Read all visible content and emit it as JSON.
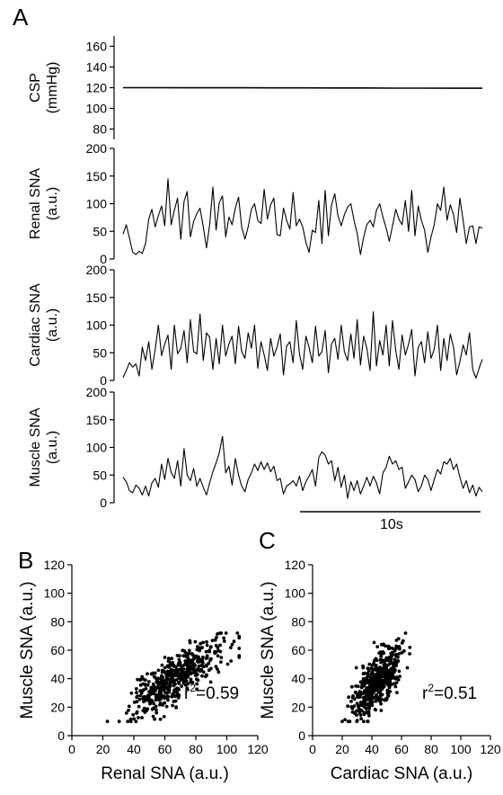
{
  "panels": {
    "a": "A",
    "b": "B",
    "c": "C"
  },
  "scale_bar_label": "10s",
  "chart_data": [
    {
      "type": "line",
      "panel": "A",
      "ylabel_lines": [
        "CSP",
        "(mmHg)"
      ],
      "ylim": [
        70,
        170
      ],
      "yticks": [
        "80",
        "100",
        "120",
        "140",
        "160"
      ],
      "series": [
        {
          "y": [
            120.0,
            120.0,
            119.9,
            119.9,
            119.9,
            119.8,
            119.8,
            119.7,
            119.7,
            119.6,
            119.6,
            119.5,
            119.5
          ]
        }
      ]
    },
    {
      "type": "line",
      "panel": "A",
      "ylabel_lines": [
        "Renal SNA",
        "(a.u.)"
      ],
      "ylim": [
        0,
        200
      ],
      "yticks": [
        "0",
        "50",
        "100",
        "150",
        "200"
      ],
      "series": [
        {
          "y": [
            45,
            62,
            38,
            12,
            8,
            14,
            10,
            28,
            72,
            90,
            58,
            78,
            96,
            60,
            145,
            62,
            88,
            110,
            36,
            104,
            122,
            40,
            68,
            82,
            92,
            58,
            20,
            62,
            130,
            52,
            102,
            114,
            40,
            76,
            62,
            92,
            112,
            58,
            36,
            58,
            90,
            100,
            70,
            64,
            126,
            72,
            98,
            110,
            44,
            42,
            92,
            70,
            54,
            120,
            60,
            72,
            58,
            30,
            12,
            52,
            48,
            106,
            28,
            124,
            42,
            98,
            118,
            78,
            60,
            80,
            94,
            100,
            70,
            46,
            8,
            40,
            62,
            70,
            58,
            88,
            100,
            76,
            56,
            32,
            60,
            90,
            72,
            62,
            106,
            50,
            124,
            42,
            96,
            70,
            52,
            12,
            40,
            62,
            100,
            88,
            130,
            70,
            98,
            80,
            48,
            110,
            70,
            28,
            58,
            60,
            28,
            58,
            56
          ]
        }
      ]
    },
    {
      "type": "line",
      "panel": "A",
      "ylabel_lines": [
        "Cardiac SNA",
        "(a.u.)"
      ],
      "ylim": [
        0,
        200
      ],
      "yticks": [
        "0",
        "50",
        "100",
        "150",
        "200"
      ],
      "series": [
        {
          "y": [
            5,
            18,
            32,
            24,
            30,
            8,
            60,
            36,
            70,
            20,
            55,
            100,
            45,
            66,
            82,
            20,
            100,
            48,
            58,
            90,
            32,
            110,
            52,
            48,
            120,
            36,
            86,
            78,
            20,
            76,
            30,
            100,
            44,
            66,
            80,
            30,
            98,
            52,
            40,
            86,
            58,
            100,
            22,
            70,
            46,
            18,
            76,
            44,
            60,
            84,
            10,
            62,
            70,
            32,
            108,
            48,
            20,
            80,
            60,
            32,
            98,
            44,
            52,
            90,
            14,
            66,
            76,
            38,
            100,
            52,
            36,
            84,
            40,
            110,
            28,
            80,
            58,
            18,
            124,
            26,
            72,
            46,
            100,
            26,
            108,
            54,
            20,
            82,
            46,
            66,
            92,
            8,
            60,
            70,
            32,
            88,
            40,
            56,
            100,
            18,
            76,
            36,
            84,
            60,
            10,
            34,
            64,
            46,
            86,
            20,
            4,
            22,
            38
          ]
        }
      ]
    },
    {
      "type": "line",
      "panel": "A",
      "ylabel_lines": [
        "Muscle SNA",
        "(a.u.)"
      ],
      "ylim": [
        0,
        200
      ],
      "yticks": [
        "0",
        "50",
        "100",
        "150",
        "200"
      ],
      "series": [
        {
          "y": [
            46,
            38,
            22,
            18,
            32,
            26,
            14,
            30,
            12,
            36,
            44,
            28,
            70,
            42,
            80,
            55,
            44,
            76,
            30,
            98,
            50,
            40,
            62,
            30,
            44,
            28,
            14,
            36,
            56,
            72,
            90,
            120,
            54,
            66,
            32,
            80,
            50,
            30,
            20,
            42,
            54,
            70,
            58,
            74,
            60,
            72,
            56,
            66,
            40,
            44,
            16,
            30,
            34,
            40,
            30,
            48,
            22,
            38,
            48,
            60,
            30,
            82,
            92,
            86,
            70,
            76,
            40,
            64,
            28,
            50,
            8,
            38,
            22,
            40,
            16,
            30,
            46,
            30,
            48,
            36,
            16,
            54,
            64,
            84,
            70,
            76,
            60,
            64,
            26,
            38,
            50,
            42,
            20,
            30,
            50,
            42,
            22,
            42,
            60,
            52,
            74,
            70,
            80,
            60,
            70,
            46,
            26,
            40,
            18,
            32,
            12,
            28,
            20
          ]
        }
      ]
    },
    {
      "type": "scatter",
      "panel": "B",
      "xlabel": "Renal SNA (a.u.)",
      "ylabel": "Muscle SNA (a.u.)",
      "xlim": [
        0,
        120
      ],
      "ylim": [
        0,
        120
      ],
      "xticks": [
        "0",
        "20",
        "40",
        "60",
        "80",
        "100",
        "120"
      ],
      "yticks": [
        "0",
        "20",
        "40",
        "60",
        "80",
        "100",
        "120"
      ],
      "r2_prefix": "r",
      "r2_exponent": "2",
      "r2_value": "=0.59",
      "fit": {
        "slope": 0.65,
        "intercept": -3,
        "sd_noise": 8,
        "x_mean": 68,
        "x_sd": 15,
        "x_min": 15,
        "x_max": 108,
        "y_min": 10,
        "y_max": 72
      },
      "n_points": 480
    },
    {
      "type": "scatter",
      "panel": "C",
      "xlabel": "Cardiac SNA (a.u.)",
      "ylabel": "Muscle SNA (a.u.)",
      "xlim": [
        0,
        120
      ],
      "ylim": [
        0,
        120
      ],
      "xticks": [
        "0",
        "20",
        "40",
        "60",
        "80",
        "100",
        "120"
      ],
      "yticks": [
        "0",
        "20",
        "40",
        "60",
        "80",
        "100",
        "120"
      ],
      "r2_prefix": "r",
      "r2_exponent": "2",
      "r2_value": "=0.51",
      "fit": {
        "slope": 1.05,
        "intercept": -8,
        "sd_noise": 9,
        "x_mean": 44,
        "x_sd": 8.5,
        "x_min": 20,
        "x_max": 66,
        "y_min": 10,
        "y_max": 72
      },
      "n_points": 480
    }
  ]
}
